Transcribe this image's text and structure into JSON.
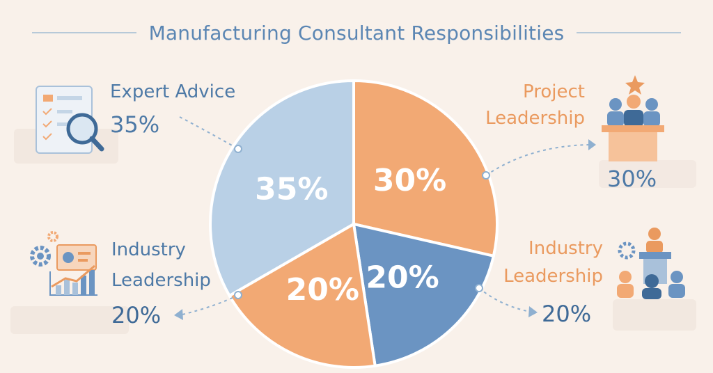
{
  "title": "Manufacturing Consultant Responsibilities",
  "colors": {
    "background": "#f9f1ea",
    "slice_light_blue": "#b9d0e6",
    "slice_orange": "#f2a974",
    "slice_blue": "#6b94c2",
    "text_blue": "#4d79a6",
    "text_orange": "#ea9a5f"
  },
  "icons": [
    "magnifier-checklist-icon",
    "podium-star-icon",
    "gear-chart-icon",
    "leader-team-icon"
  ],
  "callouts": {
    "expert_advice": {
      "label": "Expert Advice",
      "value": "35%"
    },
    "project_leadership": {
      "label_line1": "Project",
      "label_line2": "Leadership",
      "value": "30%"
    },
    "industry_left": {
      "label_line1": "Industry",
      "label_line2": "Leadership",
      "value": "20%"
    },
    "industry_right": {
      "label_line1": "Industry",
      "label_line2": "Leadership",
      "value": "20%"
    }
  },
  "chart_data": {
    "type": "pie",
    "title": "Manufacturing Consultant Responsibilities",
    "slices": [
      {
        "label": "Expert Advice",
        "value": 35,
        "display": "35%",
        "color": "#b9d0e6"
      },
      {
        "label": "Project Leadership",
        "value": 30,
        "display": "30%",
        "color": "#f2a974"
      },
      {
        "label": "Industry Leadership",
        "value": 20,
        "display": "20%",
        "color": "#6b94c2"
      },
      {
        "label": "Industry Leadership",
        "value": 20,
        "display": "20%",
        "color": "#f2a974"
      }
    ]
  }
}
